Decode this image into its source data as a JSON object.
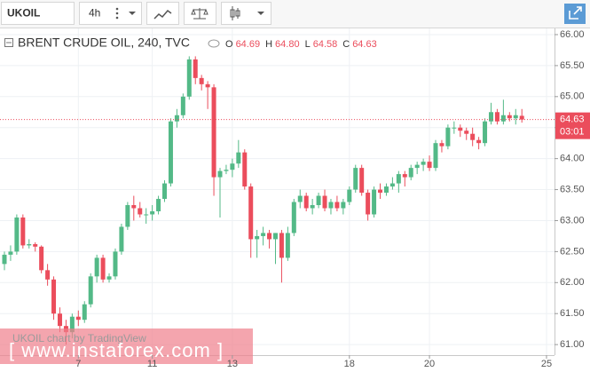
{
  "toolbar": {
    "symbol": "UKOIL",
    "interval": "4h"
  },
  "chart_data": {
    "type": "candlestick",
    "title": "BRENT CRUDE OIL, 240, TVC",
    "ohlc_letters": [
      "O",
      "H",
      "L",
      "C"
    ],
    "last_value_labels": [
      "64.69",
      "64.80",
      "64.58",
      "64.63"
    ],
    "countdown": "03:01",
    "watermark": "UKOIL chart by TradingView",
    "banner": "[ www.instaforex.com ]",
    "up_color": "#53b987",
    "down_color": "#eb4d5c",
    "grid": true,
    "xlim": [
      -0.72,
      89.3
    ],
    "xticks": [
      {
        "value": 12,
        "label": "7"
      },
      {
        "value": 24,
        "label": "11"
      },
      {
        "value": 37,
        "label": "13"
      },
      {
        "value": 56,
        "label": "18"
      },
      {
        "value": 69,
        "label": "20"
      },
      {
        "value": 88,
        "label": "25"
      }
    ],
    "ylim": [
      60.83,
      66.1
    ],
    "yticks": [
      {
        "value": 61,
        "label": "61.00"
      },
      {
        "value": 61.5,
        "label": "61.50"
      },
      {
        "value": 62,
        "label": "62.00"
      },
      {
        "value": 62.5,
        "label": "62.50"
      },
      {
        "value": 63,
        "label": "63.00"
      },
      {
        "value": 63.5,
        "label": "63.50"
      },
      {
        "value": 64,
        "label": "64.00"
      },
      {
        "value": 64.5,
        "label": "64.50"
      },
      {
        "value": 65,
        "label": "65.00"
      },
      {
        "value": 65.5,
        "label": "65.50"
      },
      {
        "value": 66,
        "label": "66.00"
      }
    ],
    "ohlc": [
      [
        62.3,
        62.5,
        62.2,
        62.45
      ],
      [
        62.45,
        62.6,
        62.35,
        62.5
      ],
      [
        62.5,
        63.1,
        62.45,
        63.05
      ],
      [
        63.05,
        63.1,
        62.55,
        62.6
      ],
      [
        62.6,
        62.7,
        62.55,
        62.62
      ],
      [
        62.62,
        62.65,
        62.5,
        62.58
      ],
      [
        62.58,
        62.6,
        62.15,
        62.2
      ],
      [
        62.2,
        62.3,
        61.95,
        62.05
      ],
      [
        62.05,
        62.1,
        61.4,
        61.5
      ],
      [
        61.5,
        61.6,
        61.2,
        61.3
      ],
      [
        61.3,
        61.4,
        61.0,
        61.2
      ],
      [
        61.2,
        61.5,
        61.1,
        61.45
      ],
      [
        61.45,
        61.55,
        61.3,
        61.4
      ],
      [
        61.4,
        61.7,
        61.35,
        61.65
      ],
      [
        61.65,
        62.15,
        61.6,
        62.1
      ],
      [
        62.1,
        62.45,
        62.0,
        62.4
      ],
      [
        62.4,
        62.45,
        62.0,
        62.05
      ],
      [
        62.05,
        62.15,
        62.0,
        62.1
      ],
      [
        62.1,
        62.55,
        62.05,
        62.5
      ],
      [
        62.5,
        62.95,
        62.45,
        62.9
      ],
      [
        62.9,
        63.3,
        62.85,
        63.25
      ],
      [
        63.25,
        63.4,
        63.0,
        63.2
      ],
      [
        63.2,
        63.3,
        63.05,
        63.1
      ],
      [
        63.1,
        63.2,
        62.95,
        63.1
      ],
      [
        63.1,
        63.25,
        63.0,
        63.15
      ],
      [
        63.15,
        63.4,
        63.1,
        63.35
      ],
      [
        63.35,
        63.65,
        63.3,
        63.6
      ],
      [
        63.6,
        64.65,
        63.55,
        64.6
      ],
      [
        64.6,
        64.8,
        64.5,
        64.7
      ],
      [
        64.7,
        65.05,
        64.65,
        65.0
      ],
      [
        65.0,
        65.65,
        64.95,
        65.6
      ],
      [
        65.6,
        65.65,
        65.2,
        65.3
      ],
      [
        65.3,
        65.35,
        65.1,
        65.2
      ],
      [
        65.2,
        65.25,
        64.8,
        65.15
      ],
      [
        65.15,
        65.2,
        63.4,
        63.7
      ],
      [
        63.7,
        63.85,
        63.05,
        63.8
      ],
      [
        63.8,
        63.9,
        63.75,
        63.82
      ],
      [
        63.82,
        64.0,
        63.7,
        63.92
      ],
      [
        63.92,
        64.3,
        63.85,
        64.1
      ],
      [
        64.1,
        64.15,
        63.5,
        63.55
      ],
      [
        63.55,
        63.6,
        62.4,
        62.7
      ],
      [
        62.7,
        62.85,
        62.4,
        62.75
      ],
      [
        62.75,
        62.9,
        62.6,
        62.8
      ],
      [
        62.8,
        62.85,
        62.55,
        62.7
      ],
      [
        62.7,
        62.8,
        62.3,
        62.8
      ],
      [
        62.8,
        62.85,
        62.0,
        62.4
      ],
      [
        62.4,
        62.9,
        62.35,
        62.8
      ],
      [
        62.8,
        63.35,
        62.75,
        63.3
      ],
      [
        63.3,
        63.5,
        63.2,
        63.4
      ],
      [
        63.4,
        63.45,
        63.15,
        63.2
      ],
      [
        63.2,
        63.35,
        63.1,
        63.25
      ],
      [
        63.25,
        63.45,
        63.2,
        63.4
      ],
      [
        63.4,
        63.5,
        63.15,
        63.2
      ],
      [
        63.2,
        63.35,
        63.1,
        63.3
      ],
      [
        63.3,
        63.4,
        63.15,
        63.2
      ],
      [
        63.2,
        63.35,
        63.1,
        63.3
      ],
      [
        63.3,
        63.55,
        63.25,
        63.5
      ],
      [
        63.5,
        63.9,
        63.45,
        63.85
      ],
      [
        63.85,
        63.9,
        63.4,
        63.45
      ],
      [
        63.45,
        63.5,
        63.0,
        63.1
      ],
      [
        63.1,
        63.55,
        63.05,
        63.5
      ],
      [
        63.5,
        63.6,
        63.35,
        63.45
      ],
      [
        63.45,
        63.6,
        63.4,
        63.55
      ],
      [
        63.55,
        63.7,
        63.5,
        63.6
      ],
      [
        63.6,
        63.8,
        63.45,
        63.75
      ],
      [
        63.75,
        63.8,
        63.55,
        63.7
      ],
      [
        63.7,
        63.9,
        63.65,
        63.85
      ],
      [
        63.85,
        63.95,
        63.75,
        63.9
      ],
      [
        63.9,
        64.0,
        63.8,
        63.95
      ],
      [
        63.95,
        64.05,
        63.8,
        63.85
      ],
      [
        63.85,
        64.3,
        63.8,
        64.25
      ],
      [
        64.25,
        64.3,
        64.1,
        64.2
      ],
      [
        64.2,
        64.55,
        64.15,
        64.5
      ],
      [
        64.5,
        64.6,
        64.4,
        64.5
      ],
      [
        64.5,
        64.55,
        64.35,
        64.45
      ],
      [
        64.45,
        64.5,
        64.3,
        64.4
      ],
      [
        64.4,
        64.5,
        64.2,
        64.3
      ],
      [
        64.3,
        64.35,
        64.15,
        64.25
      ],
      [
        64.25,
        64.65,
        64.2,
        64.6
      ],
      [
        64.6,
        64.9,
        64.55,
        64.75
      ],
      [
        64.75,
        64.8,
        64.55,
        64.6
      ],
      [
        64.6,
        64.95,
        64.55,
        64.7
      ],
      [
        64.7,
        64.75,
        64.6,
        64.65
      ],
      [
        64.65,
        64.8,
        64.55,
        64.7
      ],
      [
        64.69,
        64.8,
        64.58,
        64.63
      ]
    ]
  }
}
